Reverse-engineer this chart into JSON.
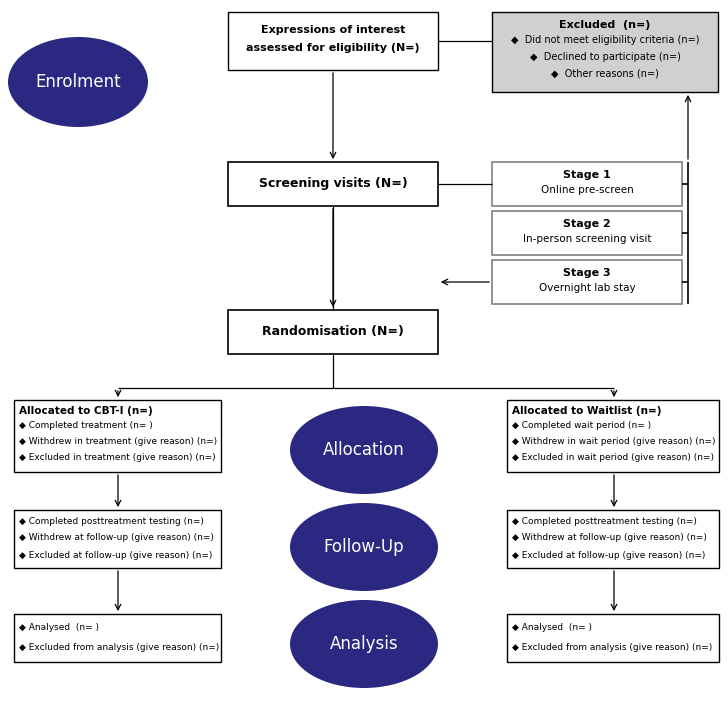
{
  "dark_purple": "#2B2882",
  "light_gray_bg": "#D0D0D0",
  "white": "#FFFFFF",
  "black": "#000000",
  "stage_border": "#808080",
  "enrolment_label": "Enrolment",
  "allocation_label": "Allocation",
  "followup_label": "Follow-Up",
  "analysis_label": "Analysis",
  "expressions_line1": "Expressions of interest",
  "expressions_line2": "assessed for eligibility (N=)",
  "excluded_title": "Excluded  (n=)",
  "excluded_items": [
    "◆  Did not meet eligibility criteria (n=)",
    "◆  Declined to participate (n=)",
    "◆  Other reasons (n=)"
  ],
  "screening_label": "Screening visits (N=)",
  "stage1_title": "Stage 1",
  "stage1_sub": "Online pre-screen",
  "stage2_title": "Stage 2",
  "stage2_sub": "In-person screening visit",
  "stage3_title": "Stage 3",
  "stage3_sub": "Overnight lab stay",
  "randomisation_label": "Randomisation (N=)",
  "cbti_title": "Allocated to CBT-I (n=)",
  "cbti_items": [
    "◆ Completed treatment (n= )",
    "◆ Withdrew in treatment (give reason) (n=)",
    "◆ Excluded in treatment (give reason) (n=)"
  ],
  "waitlist_title": "Allocated to Waitlist (n=)",
  "waitlist_items": [
    "◆ Completed wait period (n= )",
    "◆ Withdrew in wait period (give reason) (n=)",
    "◆ Excluded in wait period (give reason) (n=)"
  ],
  "followup_cbti_items": [
    "◆ Completed posttreatment testing (n=)",
    "◆ Withdrew at follow-up (give reason) (n=)",
    "◆ Excluded at follow-up (give reason) (n=)"
  ],
  "followup_waitlist_items": [
    "◆ Completed posttreatment testing (n=)",
    "◆ Withdrew at follow-up (give reason) (n=)",
    "◆ Excluded at follow-up (give reason) (n=)"
  ],
  "analysis_cbti_items": [
    "◆ Analysed  (n= )",
    "◆ Excluded from analysis (give reason) (n=)"
  ],
  "analysis_waitlist_items": [
    "◆ Analysed  (n= )",
    "◆ Excluded from analysis (give reason) (n=)"
  ]
}
